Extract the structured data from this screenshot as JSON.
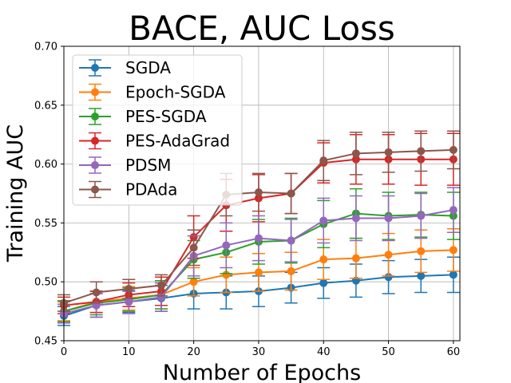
{
  "chart_data": {
    "type": "line",
    "title": "BACE, AUC Loss",
    "xlabel": "Number of Epochs",
    "ylabel": "Training AUC",
    "xlim": [
      0,
      61
    ],
    "ylim": [
      0.45,
      0.7
    ],
    "xticks": [
      0,
      10,
      20,
      30,
      40,
      50,
      60
    ],
    "yticks": [
      0.45,
      0.5,
      0.55,
      0.6,
      0.65,
      0.7
    ],
    "ytick_labels": [
      "0.45",
      "0.50",
      "0.55",
      "0.60",
      "0.65",
      "0.70"
    ],
    "grid": true,
    "legend_position": "top-left",
    "x": [
      0,
      5,
      10,
      15,
      20,
      25,
      30,
      35,
      40,
      45,
      50,
      55,
      60
    ],
    "series": [
      {
        "name": "SGDA",
        "color": "#1f77b4",
        "values": [
          0.471,
          0.48,
          0.483,
          0.486,
          0.49,
          0.491,
          0.492,
          0.495,
          0.499,
          0.501,
          0.504,
          0.505,
          0.506
        ],
        "errors": [
          0.008,
          0.01,
          0.009,
          0.011,
          0.013,
          0.014,
          0.013,
          0.013,
          0.013,
          0.014,
          0.014,
          0.014,
          0.015
        ]
      },
      {
        "name": "Epoch-SGDA",
        "color": "#ff7f0e",
        "values": [
          0.475,
          0.483,
          0.486,
          0.489,
          0.5,
          0.506,
          0.508,
          0.509,
          0.519,
          0.52,
          0.523,
          0.526,
          0.527
        ],
        "errors": [
          0.008,
          0.009,
          0.01,
          0.012,
          0.012,
          0.015,
          0.016,
          0.016,
          0.017,
          0.017,
          0.018,
          0.018,
          0.018
        ]
      },
      {
        "name": "PES-SGDA",
        "color": "#2ca02c",
        "values": [
          0.475,
          0.482,
          0.485,
          0.489,
          0.519,
          0.525,
          0.534,
          0.535,
          0.549,
          0.558,
          0.556,
          0.557,
          0.556
        ],
        "errors": [
          0.009,
          0.01,
          0.01,
          0.012,
          0.016,
          0.018,
          0.019,
          0.019,
          0.02,
          0.021,
          0.02,
          0.019,
          0.02
        ]
      },
      {
        "name": "PES-AdaGrad",
        "color": "#d62728",
        "values": [
          0.48,
          0.483,
          0.489,
          0.492,
          0.538,
          0.565,
          0.571,
          0.575,
          0.601,
          0.604,
          0.604,
          0.604,
          0.604
        ],
        "errors": [
          0.007,
          0.009,
          0.01,
          0.012,
          0.018,
          0.022,
          0.02,
          0.017,
          0.017,
          0.021,
          0.021,
          0.022,
          0.022
        ]
      },
      {
        "name": "PDSM",
        "color": "#9467bd",
        "values": [
          0.473,
          0.48,
          0.483,
          0.487,
          0.522,
          0.531,
          0.537,
          0.535,
          0.552,
          0.554,
          0.554,
          0.556,
          0.561
        ],
        "errors": [
          0.008,
          0.01,
          0.01,
          0.012,
          0.017,
          0.019,
          0.019,
          0.018,
          0.019,
          0.019,
          0.019,
          0.019,
          0.019
        ]
      },
      {
        "name": "PDAda",
        "color": "#8c564b",
        "values": [
          0.482,
          0.491,
          0.494,
          0.497,
          0.529,
          0.574,
          0.576,
          0.575,
          0.603,
          0.609,
          0.61,
          0.611,
          0.612
        ],
        "errors": [
          0.007,
          0.009,
          0.008,
          0.009,
          0.015,
          0.018,
          0.016,
          0.017,
          0.017,
          0.018,
          0.017,
          0.017,
          0.016
        ]
      }
    ]
  }
}
